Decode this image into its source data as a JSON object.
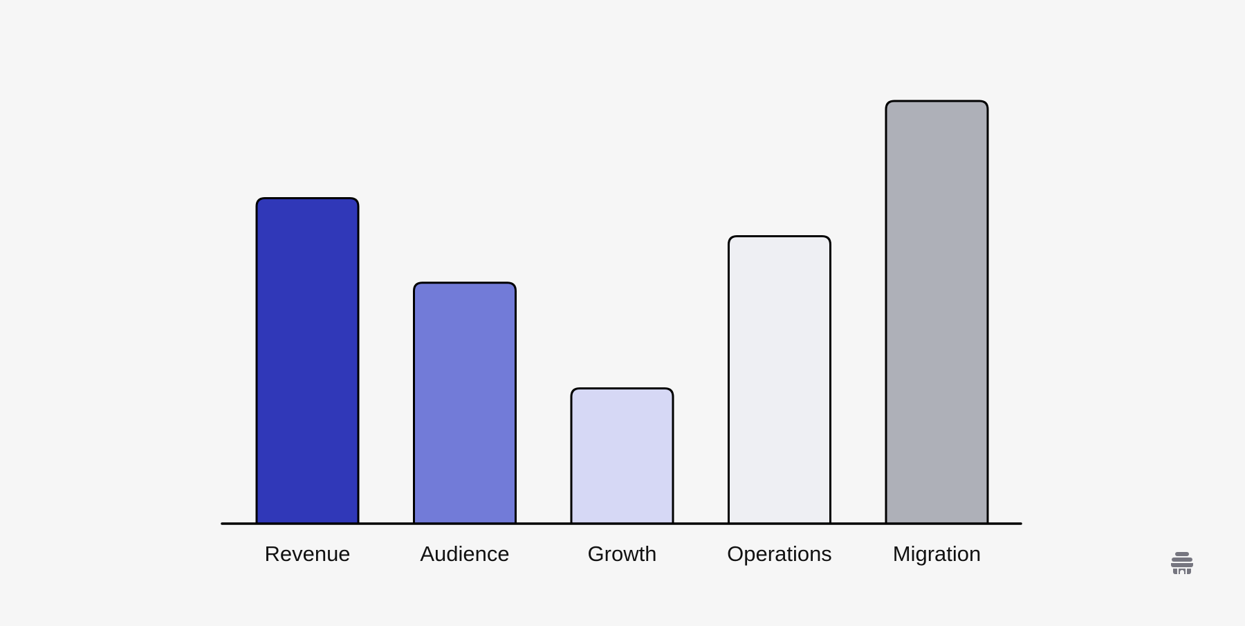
{
  "chart_data": {
    "type": "bar",
    "categories": [
      "Revenue",
      "Audience",
      "Growth",
      "Operations",
      "Migration"
    ],
    "values": [
      77,
      57,
      32,
      68,
      100
    ],
    "colors": [
      "#3038b8",
      "#727bd8",
      "#d6d8f5",
      "#eeeff3",
      "#aeb0b8"
    ],
    "ylim": [
      0,
      100
    ],
    "grid": false,
    "legend": "none",
    "title": "",
    "xlabel": "",
    "ylabel": ""
  },
  "logo": {
    "icon": "beehive-logo-icon",
    "color": "#767680"
  }
}
